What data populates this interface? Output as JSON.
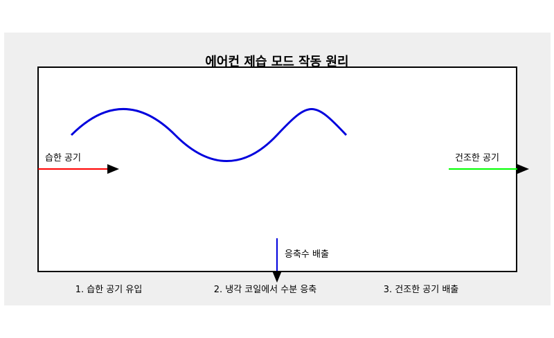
{
  "title": "에어컨 제습 모드 작동 원리",
  "labels": {
    "humid_air": "습한 공기",
    "dry_air": "건조한 공기",
    "condensate": "응축수 배출"
  },
  "steps": [
    {
      "text": "1. 습한 공기 유입"
    },
    {
      "text": "2. 냉각 코일에서 수분 응축"
    },
    {
      "text": "3. 건조한 공기 배출"
    }
  ],
  "colors": {
    "background_panel": "#efefef",
    "unit_fill": "#ffffff",
    "unit_border": "#000000",
    "humid_air_line": "#ff0000",
    "dry_air_line": "#00ff00",
    "coil": "#0000dd",
    "condensate_line": "#0000dd",
    "arrow_head": "#000000"
  }
}
